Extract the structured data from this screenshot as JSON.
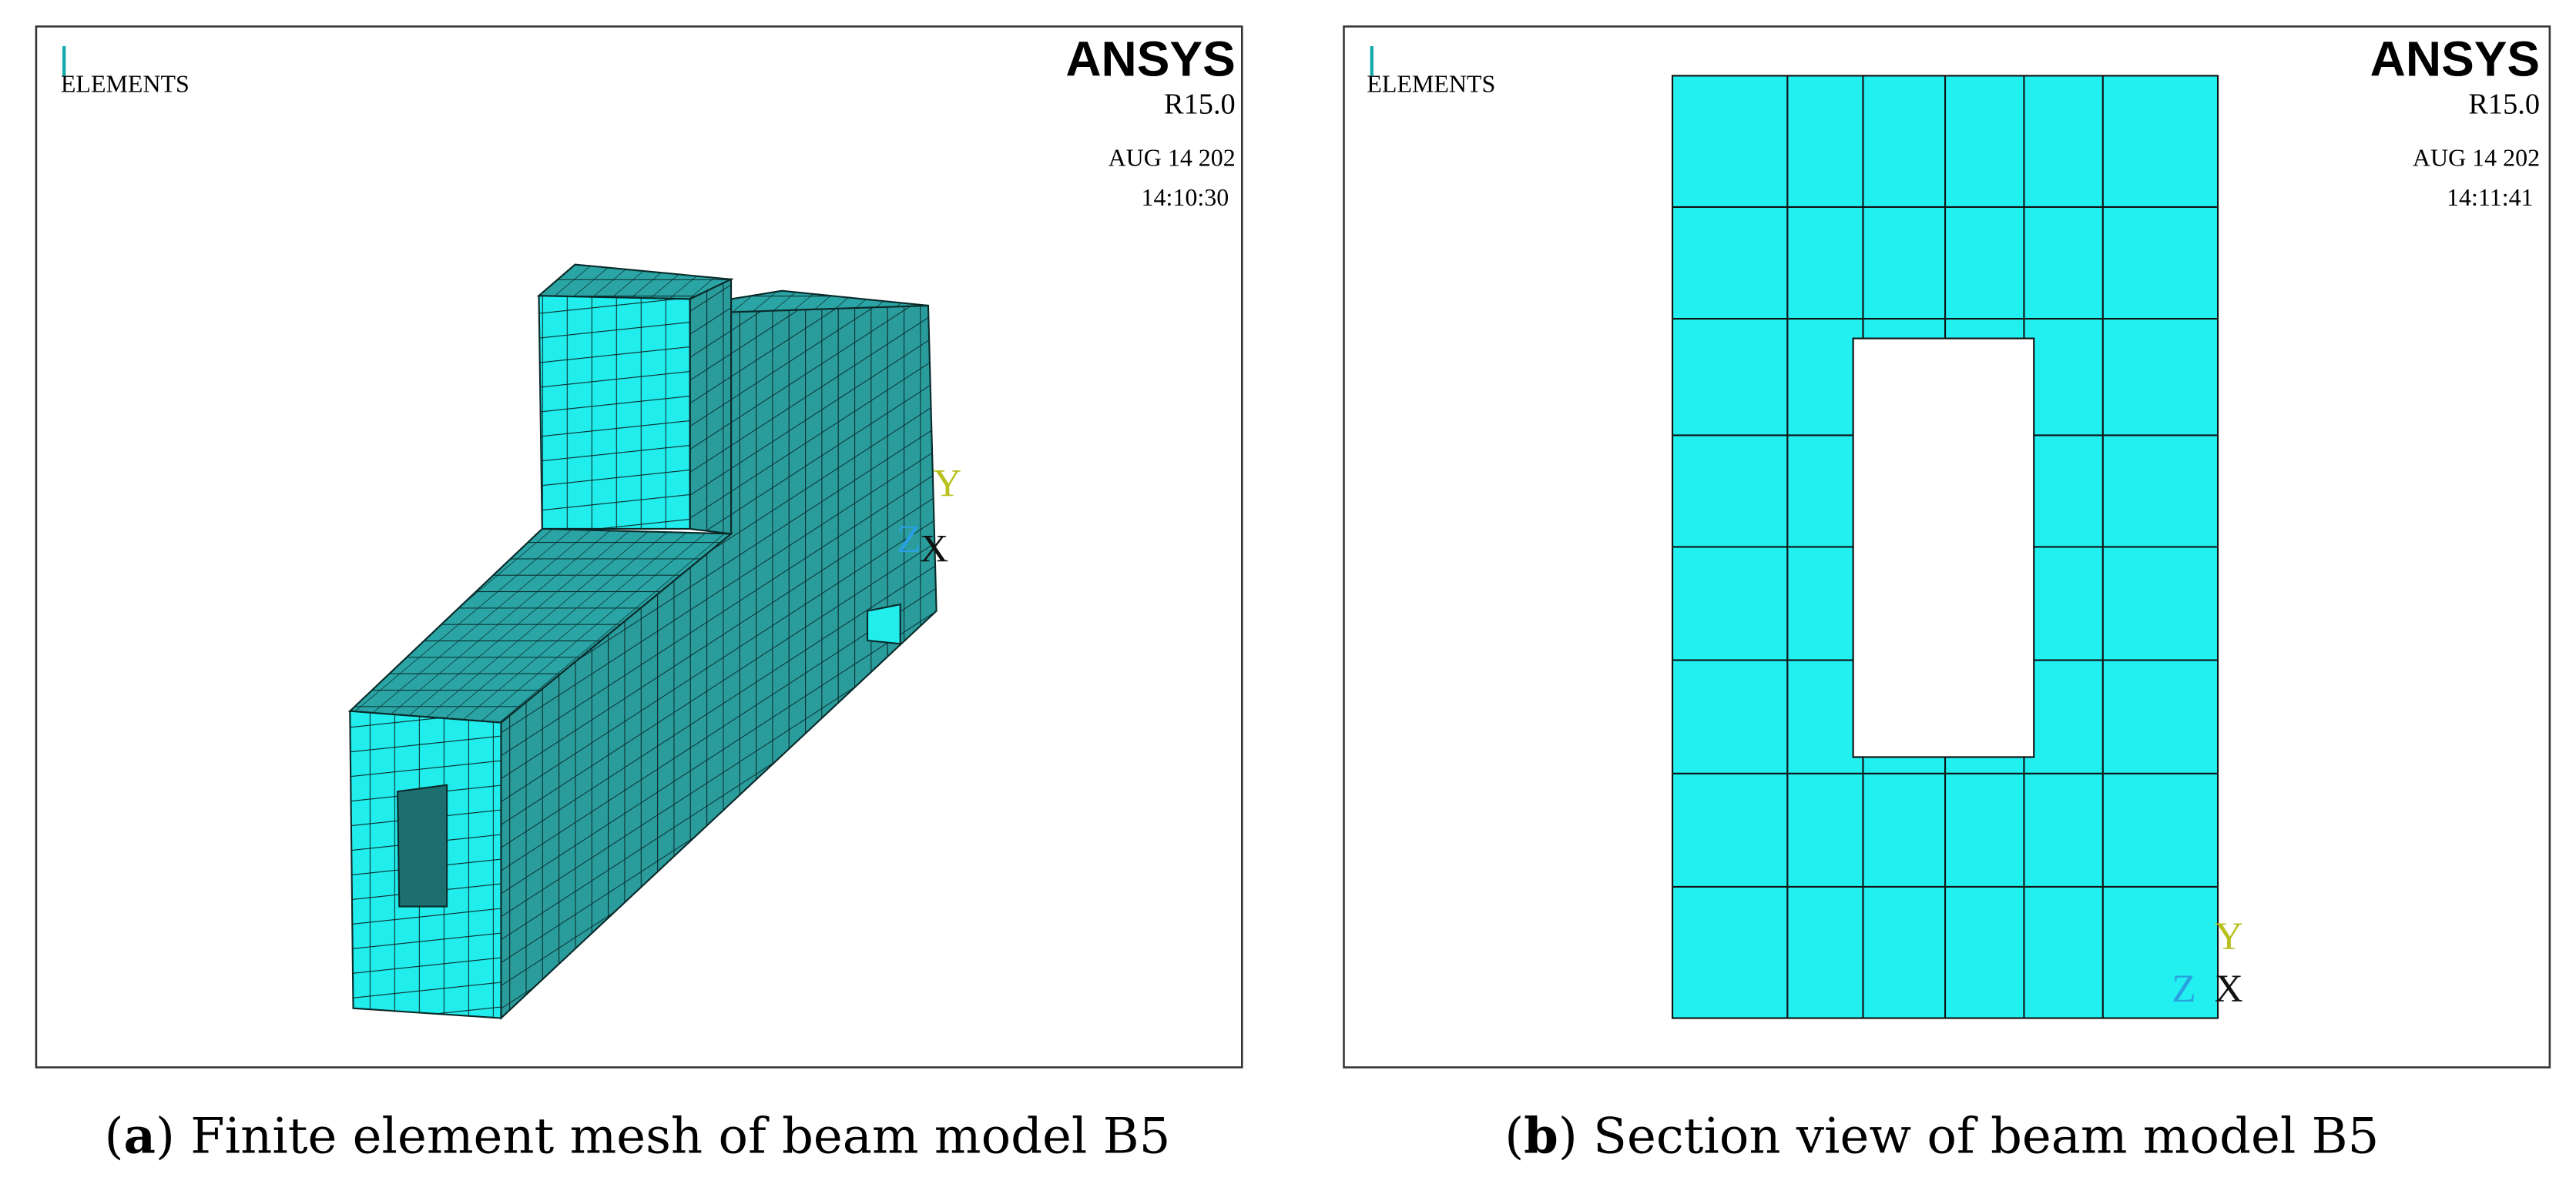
{
  "panels": [
    {
      "label": "ELEMENTS",
      "brand": "ANSYS",
      "version": "R15.0",
      "date": "AUG 14 202",
      "time": "14:10:30",
      "axes": {
        "y": "Y",
        "z": "Z",
        "x": "X"
      },
      "caption": {
        "open": "(",
        "label": "a",
        "text": ") Finite element mesh of beam model B5"
      }
    },
    {
      "label": "ELEMENTS",
      "brand": "ANSYS",
      "version": "R15.0",
      "date": "AUG 14 202",
      "time": "14:11:41",
      "axes": {
        "y": "Y",
        "z": "Z",
        "x": "X"
      },
      "caption": {
        "open": "(",
        "label": "b",
        "text": ") Section view of beam model B5"
      }
    }
  ]
}
